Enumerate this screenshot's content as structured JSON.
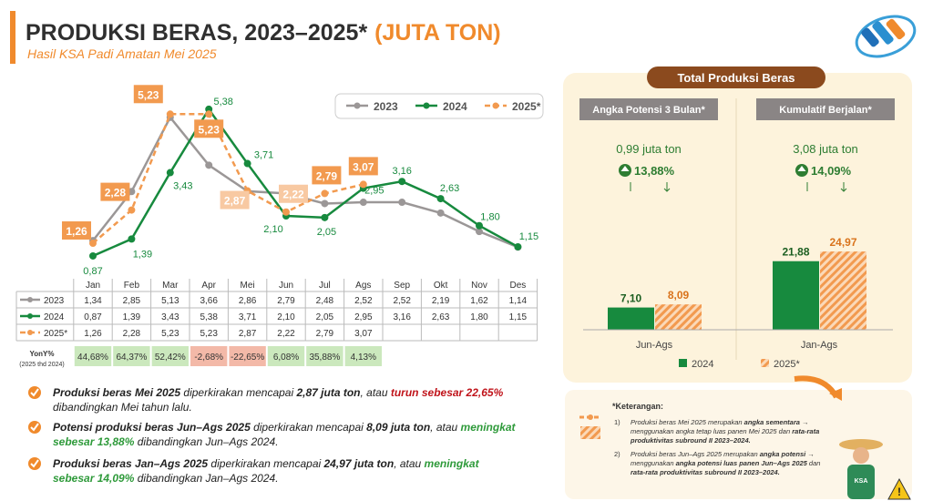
{
  "header": {
    "title": "PRODUKSI BERAS, 2023–2025*",
    "unit": "(JUTA TON)",
    "subtitle": "Hasil KSA Padi Amatan Mei 2025"
  },
  "chart_data": [
    {
      "type": "line",
      "categories": [
        "Jan",
        "Feb",
        "Mar",
        "Apr",
        "Mei",
        "Jun",
        "Jul",
        "Ags",
        "Sep",
        "Okt",
        "Nov",
        "Des"
      ],
      "series": [
        {
          "name": "2023",
          "color": "#9b9797",
          "line_style": "solid",
          "values": [
            1.34,
            2.85,
            5.13,
            3.66,
            2.86,
            2.79,
            2.48,
            2.52,
            2.52,
            2.19,
            1.62,
            1.14
          ],
          "value_labels": [
            "1,34",
            "2,85",
            "5,13",
            "3,66",
            "2,86",
            "2,79",
            "2,48",
            "2,52",
            "2,52",
            "2,19",
            "1,62",
            "1,14"
          ]
        },
        {
          "name": "2024",
          "color": "#178a3e",
          "line_style": "solid",
          "values": [
            0.87,
            1.39,
            3.43,
            5.38,
            3.71,
            2.1,
            2.05,
            2.95,
            3.16,
            2.63,
            1.8,
            1.15
          ],
          "value_labels": [
            "0,87",
            "1,39",
            "3,43",
            "5,38",
            "3,71",
            "2,10",
            "2,05",
            "2,95",
            "3,16",
            "2,63",
            "1,80",
            "1,15"
          ]
        },
        {
          "name": "2025*",
          "color": "#f29a4f",
          "line_style": "dashed",
          "values": [
            1.26,
            2.28,
            5.23,
            5.23,
            2.87,
            2.22,
            2.79,
            3.07,
            null,
            null,
            null,
            null
          ],
          "value_labels": [
            "1,26",
            "2,28",
            "5,23",
            "5,23",
            "2,87",
            "2,22",
            "2,79",
            "3,07",
            null,
            null,
            null,
            null
          ]
        }
      ],
      "yoy": {
        "label": "YonY%",
        "note": "(2025 thd 2024)",
        "values": [
          "44,68%",
          "64,37%",
          "52,42%",
          "-2,68%",
          "-22,65%",
          "6,08%",
          "35,88%",
          "4,13%",
          null,
          null,
          null,
          null
        ]
      }
    },
    {
      "type": "bar",
      "title": "Total Produksi Beras",
      "categories": [
        "Jun-Ags",
        "Jan-Ags"
      ],
      "series": [
        {
          "name": "2024",
          "color": "#178a3e",
          "pattern": "solid",
          "values": [
            7.1,
            21.88
          ],
          "value_labels": [
            "7,10",
            "21,88"
          ]
        },
        {
          "name": "2025*",
          "color": "#f29a4f",
          "pattern": "hatched",
          "values": [
            8.09,
            24.97
          ],
          "value_labels": [
            "8,09",
            "24,97"
          ]
        }
      ]
    }
  ],
  "summary": [
    {
      "label": "Angka Potensi 3 Bulan*",
      "amount": "0,99 juta ton",
      "change": "13,88%"
    },
    {
      "label": "Kumulatif Berjalan*",
      "amount": "3,08 juta ton",
      "change": "14,09%"
    }
  ],
  "bullets": [
    [
      [
        "Produksi beras Mei 2025",
        " diperkirakan mencapai ",
        "2,87 juta ton",
        ", atau ",
        "turun sebesar 22,65%"
      ],
      [
        "dibandingkan Mei tahun lalu."
      ]
    ],
    [
      [
        "Potensi produksi beras Jun–Ags 2025",
        " diperkirakan mencapai ",
        "8,09 juta ton",
        ", atau ",
        "meningkat"
      ],
      [
        "sebesar 13,88%",
        " dibandingkan Jun–Ags 2024."
      ]
    ],
    [
      [
        "Produksi beras Jan–Ags 2025",
        " diperkirakan mencapai ",
        "24,97 juta ton",
        ", atau ",
        "meningkat"
      ],
      [
        "sebesar 14,09%",
        " dibandingkan Jan–Ags 2024."
      ]
    ]
  ],
  "notes": {
    "title": "*Keterangan:",
    "items": [
      {
        "marker": "1)",
        "lines": [
          [
            "Produksi beras Mei 2025 merupakan ",
            "angka sementara",
            " →"
          ],
          [
            "menggunakan angka tetap luas panen Mei 2025 dan ",
            "rata-rata"
          ],
          [
            "",
            "produktivitas subround II 2023–2024."
          ]
        ]
      },
      {
        "marker": "2)",
        "lines": [
          [
            "Produksi beras Jun–Ags 2025 merupakan ",
            "angka potensi",
            " →"
          ],
          [
            "menggunakan ",
            "angka potensi luas panen Jun–Ags 2025",
            " dan"
          ],
          [
            "",
            "rata-rata produktivitas subround II 2023–2024."
          ]
        ]
      }
    ],
    "badge": "KSA"
  }
}
